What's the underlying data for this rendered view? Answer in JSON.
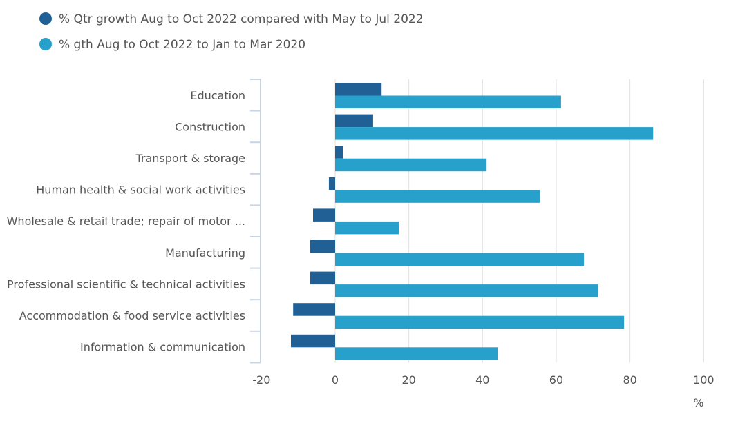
{
  "chart_data": {
    "type": "bar",
    "orientation": "horizontal",
    "categories": [
      "Education",
      "Construction",
      "Transport & storage",
      "Human health & social work activities",
      "Wholesale & retail trade; repair of motor ...",
      "Manufacturing",
      "Professional scientific & technical activities",
      "Accommodation & food service activities",
      "Information & communication"
    ],
    "series": [
      {
        "name": "% Qtr growth Aug to Oct 2022 compared with May to Jul 2022",
        "color": "#206095",
        "values": [
          12.6,
          10.3,
          2.1,
          -1.7,
          -6.0,
          -6.8,
          -6.8,
          -11.4,
          -12.0
        ]
      },
      {
        "name": "% gth Aug to Oct 2022 to Jan to Mar 2020",
        "color": "#27a0cc",
        "values": [
          61.3,
          86.3,
          41.1,
          55.5,
          17.3,
          67.5,
          71.3,
          78.4,
          44.1
        ]
      }
    ],
    "xlim": [
      -20,
      100
    ],
    "xticks": [
      -20,
      0,
      20,
      40,
      60,
      80,
      100
    ],
    "xlabel": "%",
    "grid": true,
    "legend": "top-left"
  }
}
